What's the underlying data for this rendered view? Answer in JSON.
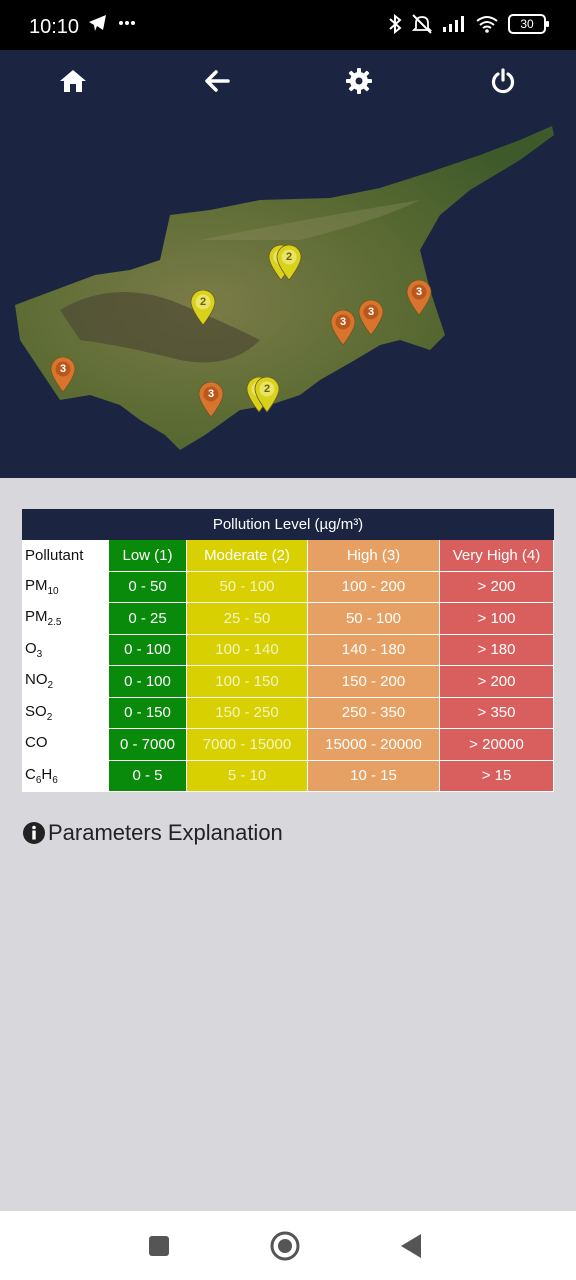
{
  "status_bar": {
    "time": "10:10",
    "battery": "30"
  },
  "toolbar": {
    "home_icon": "home-icon",
    "back_icon": "arrow-left-icon",
    "settings_icon": "gear-icon",
    "power_icon": "power-icon"
  },
  "map": {
    "markers": [
      {
        "level": "2",
        "color": "yellow"
      },
      {
        "level": "2",
        "color": "yellow"
      },
      {
        "level": "2",
        "color": "yellow"
      },
      {
        "level": "3",
        "color": "orange"
      },
      {
        "level": "3",
        "color": "orange"
      },
      {
        "level": "3",
        "color": "orange"
      },
      {
        "level": "3",
        "color": "orange"
      },
      {
        "level": "3",
        "color": "orange"
      },
      {
        "level": "2",
        "color": "yellow"
      },
      {
        "level": "2",
        "color": "yellow"
      }
    ]
  },
  "table": {
    "caption": "Pollution Level (µg/m³)",
    "headers": [
      "Pollutant",
      "Low (1)",
      "Moderate (2)",
      "High (3)",
      "Very High (4)"
    ],
    "rows": [
      {
        "name": "PM",
        "sub": "10",
        "name2": "",
        "sub2": "",
        "low": "0 - 50",
        "moderate": "50 - 100",
        "high": "100 - 200",
        "very_high": "> 200"
      },
      {
        "name": "PM",
        "sub": "2.5",
        "name2": "",
        "sub2": "",
        "low": "0 - 25",
        "moderate": "25 - 50",
        "high": "50 - 100",
        "very_high": "> 100"
      },
      {
        "name": "O",
        "sub": "3",
        "name2": "",
        "sub2": "",
        "low": "0 - 100",
        "moderate": "100 - 140",
        "high": "140 - 180",
        "very_high": "> 180"
      },
      {
        "name": "NO",
        "sub": "2",
        "name2": "",
        "sub2": "",
        "low": "0 - 100",
        "moderate": "100 - 150",
        "high": "150 - 200",
        "very_high": "> 200"
      },
      {
        "name": "SO",
        "sub": "2",
        "name2": "",
        "sub2": "",
        "low": "0 - 150",
        "moderate": "150 - 250",
        "high": "250 - 350",
        "very_high": "> 350"
      },
      {
        "name": "CO",
        "sub": "",
        "name2": "",
        "sub2": "",
        "low": "0 - 7000",
        "moderate": "7000 - 15000",
        "high": "15000 - 20000",
        "very_high": "> 20000"
      },
      {
        "name": "C",
        "sub": "6",
        "name2": "H",
        "sub2": "6",
        "low": "0 - 5",
        "moderate": "5 - 10",
        "high": "10 - 15",
        "very_high": "> 15"
      }
    ]
  },
  "params": {
    "label": "Parameters Explanation"
  },
  "colors": {
    "low": "#0a8a0a",
    "moderate": "#d8d000",
    "high": "#e6a063",
    "very_high": "#d95f5f",
    "header_bg": "#1b2440"
  }
}
